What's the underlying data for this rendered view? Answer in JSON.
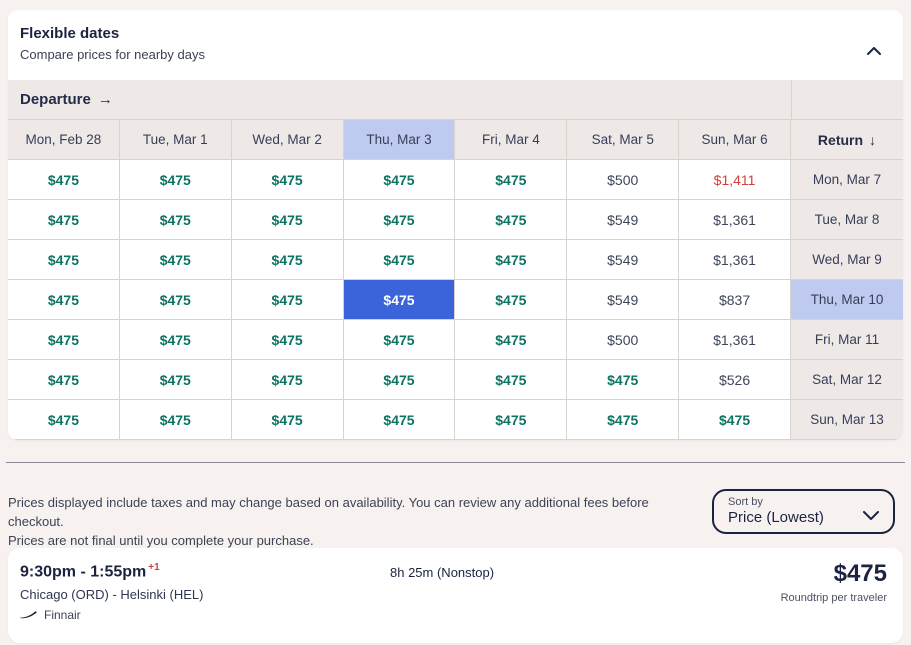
{
  "panel": {
    "title": "Flexible dates",
    "subtitle": "Compare prices for nearby days"
  },
  "matrix": {
    "departure_header": "Departure",
    "departure_arrow": "→",
    "return_header": "Return",
    "return_arrow": "↓",
    "departure_dates": [
      "Mon, Feb 28",
      "Tue, Mar 1",
      "Wed, Mar 2",
      "Thu, Mar 3",
      "Fri, Mar 4",
      "Sat, Mar 5",
      "Sun, Mar 6"
    ],
    "selected_departure_index": 3,
    "selected_return_index": 3,
    "rows": [
      {
        "return_date": "Mon, Mar 7",
        "prices": [
          {
            "text": "$475",
            "style": "lowest"
          },
          {
            "text": "$475",
            "style": "lowest"
          },
          {
            "text": "$475",
            "style": "lowest"
          },
          {
            "text": "$475",
            "style": "lowest"
          },
          {
            "text": "$475",
            "style": "lowest"
          },
          {
            "text": "$500",
            "style": "regular"
          },
          {
            "text": "$1,411",
            "style": "high"
          }
        ]
      },
      {
        "return_date": "Tue, Mar 8",
        "prices": [
          {
            "text": "$475",
            "style": "lowest"
          },
          {
            "text": "$475",
            "style": "lowest"
          },
          {
            "text": "$475",
            "style": "lowest"
          },
          {
            "text": "$475",
            "style": "lowest"
          },
          {
            "text": "$475",
            "style": "lowest"
          },
          {
            "text": "$549",
            "style": "regular"
          },
          {
            "text": "$1,361",
            "style": "regular"
          }
        ]
      },
      {
        "return_date": "Wed, Mar 9",
        "prices": [
          {
            "text": "$475",
            "style": "lowest"
          },
          {
            "text": "$475",
            "style": "lowest"
          },
          {
            "text": "$475",
            "style": "lowest"
          },
          {
            "text": "$475",
            "style": "lowest"
          },
          {
            "text": "$475",
            "style": "lowest"
          },
          {
            "text": "$549",
            "style": "regular"
          },
          {
            "text": "$1,361",
            "style": "regular"
          }
        ]
      },
      {
        "return_date": "Thu, Mar 10",
        "prices": [
          {
            "text": "$475",
            "style": "lowest"
          },
          {
            "text": "$475",
            "style": "lowest"
          },
          {
            "text": "$475",
            "style": "lowest"
          },
          {
            "text": "$475",
            "style": "selected"
          },
          {
            "text": "$475",
            "style": "lowest"
          },
          {
            "text": "$549",
            "style": "regular"
          },
          {
            "text": "$837",
            "style": "regular"
          }
        ]
      },
      {
        "return_date": "Fri, Mar 11",
        "prices": [
          {
            "text": "$475",
            "style": "lowest"
          },
          {
            "text": "$475",
            "style": "lowest"
          },
          {
            "text": "$475",
            "style": "lowest"
          },
          {
            "text": "$475",
            "style": "lowest"
          },
          {
            "text": "$475",
            "style": "lowest"
          },
          {
            "text": "$500",
            "style": "regular"
          },
          {
            "text": "$1,361",
            "style": "regular"
          }
        ]
      },
      {
        "return_date": "Sat, Mar 12",
        "prices": [
          {
            "text": "$475",
            "style": "lowest"
          },
          {
            "text": "$475",
            "style": "lowest"
          },
          {
            "text": "$475",
            "style": "lowest"
          },
          {
            "text": "$475",
            "style": "lowest"
          },
          {
            "text": "$475",
            "style": "lowest"
          },
          {
            "text": "$475",
            "style": "lowest"
          },
          {
            "text": "$526",
            "style": "regular"
          }
        ]
      },
      {
        "return_date": "Sun, Mar 13",
        "prices": [
          {
            "text": "$475",
            "style": "lowest"
          },
          {
            "text": "$475",
            "style": "lowest"
          },
          {
            "text": "$475",
            "style": "lowest"
          },
          {
            "text": "$475",
            "style": "lowest"
          },
          {
            "text": "$475",
            "style": "lowest"
          },
          {
            "text": "$475",
            "style": "lowest"
          },
          {
            "text": "$475",
            "style": "lowest"
          }
        ]
      }
    ]
  },
  "footer": {
    "disclaimer_line1": "Prices displayed include taxes and may change based on availability. You can review any additional fees before checkout.",
    "disclaimer_line2": "Prices are not final until you complete your purchase.",
    "sort_label": "Sort by",
    "sort_value": "Price (Lowest)"
  },
  "result": {
    "times": "9:30pm - 1:55pm",
    "plus_days": "+1",
    "route": "Chicago (ORD) - Helsinki (HEL)",
    "airline": "Finnair",
    "duration": "8h 25m (Nonstop)",
    "price": "$475",
    "price_caption": "Roundtrip per traveler"
  },
  "colors": {
    "page_background": "#f7f2f0",
    "header_cell": "#eee9e6",
    "selected_header": "#bfcaf1",
    "selected_cell": "#3b63da",
    "lowest_price": "#0d7462",
    "regular_price": "#3f4659",
    "high_price": "#d2403d",
    "accent_navy": "#1c2340"
  }
}
